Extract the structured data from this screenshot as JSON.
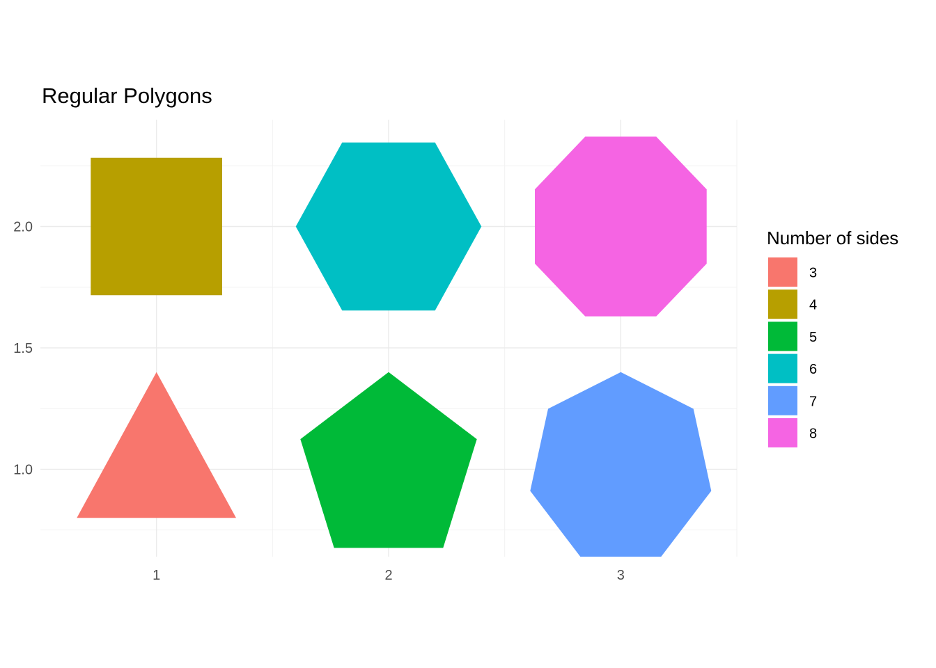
{
  "chart_data": {
    "type": "polygon",
    "title": "Regular Polygons",
    "xlabel": "",
    "ylabel": "",
    "xlim": [
      0.5,
      3.5
    ],
    "ylim": [
      0.64,
      2.44
    ],
    "x_ticks": [
      1,
      2,
      3
    ],
    "x_tick_labels": [
      "1",
      "2",
      "3"
    ],
    "y_ticks": [
      1.0,
      1.5,
      2.0
    ],
    "y_tick_labels": [
      "1.0",
      "1.5",
      "2.0"
    ],
    "grid": true,
    "legend": {
      "title": "Number of sides",
      "placement": "right",
      "entries": [
        {
          "label": "3",
          "color": "#F8766D"
        },
        {
          "label": "4",
          "color": "#B79F00"
        },
        {
          "label": "5",
          "color": "#00BA38"
        },
        {
          "label": "6",
          "color": "#00BFC4"
        },
        {
          "label": "7",
          "color": "#619CFF"
        },
        {
          "label": "8",
          "color": "#F564E3"
        }
      ]
    },
    "series": [
      {
        "name": "3",
        "sides": 3,
        "center": [
          1,
          1
        ],
        "color": "#F8766D",
        "points": [
          [
            1.0,
            1.4
          ],
          [
            1.343,
            0.8
          ],
          [
            0.657,
            0.8
          ]
        ]
      },
      {
        "name": "4",
        "sides": 4,
        "center": [
          1,
          2
        ],
        "color": "#B79F00",
        "points": [
          [
            0.717,
            2.283
          ],
          [
            1.283,
            2.283
          ],
          [
            1.283,
            1.717
          ],
          [
            0.717,
            1.717
          ]
        ]
      },
      {
        "name": "5",
        "sides": 5,
        "center": [
          2,
          1
        ],
        "color": "#00BA38",
        "points": [
          [
            2.0,
            1.4
          ],
          [
            2.38,
            1.124
          ],
          [
            2.235,
            0.676
          ],
          [
            1.765,
            0.676
          ],
          [
            1.62,
            1.124
          ]
        ]
      },
      {
        "name": "6",
        "sides": 6,
        "center": [
          2,
          2
        ],
        "color": "#00BFC4",
        "points": [
          [
            2.4,
            2.0
          ],
          [
            2.2,
            2.346
          ],
          [
            1.8,
            2.346
          ],
          [
            1.6,
            2.0
          ],
          [
            1.8,
            1.654
          ],
          [
            2.2,
            1.654
          ]
        ]
      },
      {
        "name": "7",
        "sides": 7,
        "center": [
          3,
          1
        ],
        "color": "#619CFF",
        "points": [
          [
            3.0,
            1.4
          ],
          [
            3.313,
            1.249
          ],
          [
            3.39,
            0.911
          ],
          [
            3.174,
            0.64
          ],
          [
            2.826,
            0.64
          ],
          [
            2.61,
            0.911
          ],
          [
            2.687,
            1.249
          ]
        ]
      },
      {
        "name": "8",
        "sides": 8,
        "center": [
          3,
          2
        ],
        "color": "#F564E3",
        "points": [
          [
            2.847,
            2.37
          ],
          [
            3.153,
            2.37
          ],
          [
            3.37,
            2.153
          ],
          [
            3.37,
            1.847
          ],
          [
            3.153,
            1.63
          ],
          [
            2.847,
            1.63
          ],
          [
            2.63,
            1.847
          ],
          [
            2.63,
            2.153
          ]
        ]
      }
    ]
  }
}
